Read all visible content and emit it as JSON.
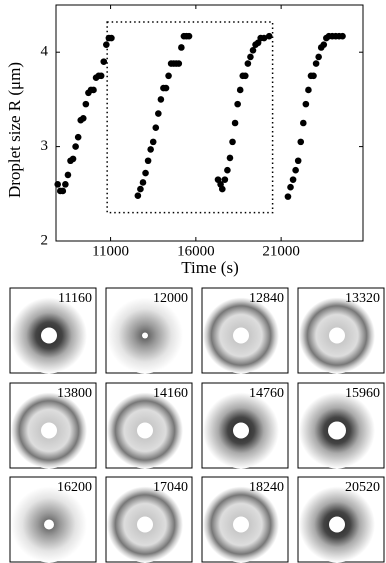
{
  "chart_data": {
    "type": "scatter",
    "xlabel": "Time (s)",
    "ylabel": "Droplet size R (μm)",
    "x": [
      7900,
      8050,
      8200,
      8350,
      8500,
      8650,
      8800,
      8950,
      9100,
      9250,
      9400,
      9550,
      9700,
      9850,
      10000,
      10150,
      10300,
      10450,
      10600,
      10750,
      10900,
      11050,
      12600,
      12750,
      12900,
      13050,
      13200,
      13350,
      13500,
      13650,
      13800,
      13950,
      14100,
      14250,
      14400,
      14550,
      14700,
      14850,
      15000,
      15150,
      15300,
      15450,
      15600,
      17300,
      17450,
      17550,
      17700,
      17850,
      18000,
      18150,
      18300,
      18450,
      18600,
      18750,
      18900,
      19050,
      19200,
      19350,
      19500,
      19650,
      19800,
      20000,
      20300,
      21400,
      21550,
      21700,
      21850,
      22000,
      22150,
      22300,
      22450,
      22600,
      22750,
      22900,
      23050,
      23200,
      23350,
      23500,
      23650,
      23800,
      24000,
      24200,
      24400,
      24600
    ],
    "values": [
      2.6,
      2.53,
      2.53,
      2.6,
      2.7,
      2.85,
      2.87,
      3.0,
      3.1,
      3.28,
      3.3,
      3.45,
      3.57,
      3.6,
      3.6,
      3.73,
      3.75,
      3.75,
      3.9,
      4.08,
      4.15,
      4.15,
      2.48,
      2.55,
      2.62,
      2.72,
      2.85,
      2.97,
      3.05,
      3.2,
      3.35,
      3.5,
      3.62,
      3.62,
      3.75,
      3.88,
      3.88,
      3.88,
      3.88,
      4.05,
      4.17,
      4.17,
      4.17,
      2.65,
      2.6,
      2.55,
      2.65,
      2.75,
      2.88,
      3.05,
      3.25,
      3.45,
      3.6,
      3.75,
      3.75,
      3.88,
      3.95,
      4.02,
      4.08,
      4.1,
      4.15,
      4.15,
      4.17,
      2.47,
      2.57,
      2.65,
      2.75,
      2.85,
      3.05,
      3.25,
      3.45,
      3.6,
      3.75,
      3.75,
      3.88,
      3.95,
      4.05,
      4.08,
      4.15,
      4.17,
      4.17,
      4.17,
      4.17,
      4.17
    ],
    "color": "#000000",
    "xlim": [
      7800,
      25800
    ],
    "ylim": [
      2,
      4.5
    ],
    "xticks": [
      11000,
      16000,
      21000
    ],
    "yticks": [
      2,
      3,
      4
    ],
    "highlight_box": {
      "x": [
        10800,
        20500
      ],
      "y": [
        2.3,
        4.32
      ]
    }
  },
  "panels": [
    {
      "label": "11160"
    },
    {
      "label": "12000"
    },
    {
      "label": "12840"
    },
    {
      "label": "13320"
    },
    {
      "label": "13800"
    },
    {
      "label": "14160"
    },
    {
      "label": "14760"
    },
    {
      "label": "15960"
    },
    {
      "label": "16200"
    },
    {
      "label": "17040"
    },
    {
      "label": "18240"
    },
    {
      "label": "20520"
    }
  ]
}
